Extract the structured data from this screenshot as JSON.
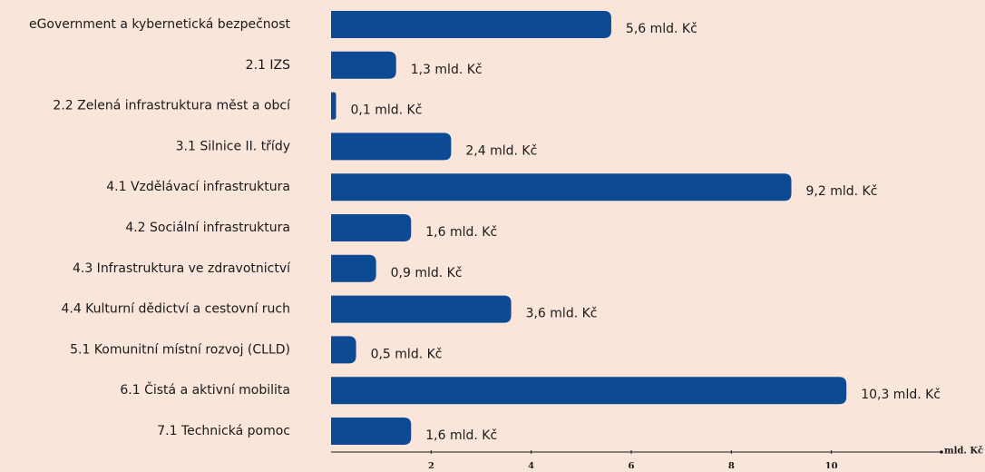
{
  "chart_data": {
    "type": "bar",
    "orientation": "horizontal",
    "categories": [
      "eGovernment a kybernetická bezpečnost",
      "2.1 IZS",
      "2.2 Zelená infrastruktura měst a obcí",
      "3.1 Silnice II. třídy",
      "4.1 Vzdělávací infrastruktura",
      "4.2 Sociální infrastruktura",
      "4.3 Infrastruktura ve zdravotnictví",
      "4.4 Kulturní dědictví a cestovní ruch",
      "5.1 Komunitní místní rozvoj (CLLD)",
      "6.1 Čistá a aktivní mobilita",
      "7.1 Technická pomoc"
    ],
    "values": [
      5.6,
      1.3,
      0.1,
      2.4,
      9.2,
      1.6,
      0.9,
      3.6,
      0.5,
      10.3,
      1.6
    ],
    "value_labels": [
      "5,6 mld. Kč",
      "1,3 mld. Kč",
      "0,1 mld. Kč",
      "2,4 mld. Kč",
      "9,2 mld. Kč",
      "1,6 mld. Kč",
      "0,9 mld. Kč",
      "3,6 mld. Kč",
      "0,5 mld. Kč",
      "10,3 mld. Kč",
      "1,6 mld. Kč"
    ],
    "color": "#0d4a94",
    "x_label": "mld. Kč",
    "xlim": [
      0,
      12.2
    ],
    "xticks": [
      2,
      4,
      6,
      8,
      10
    ]
  }
}
